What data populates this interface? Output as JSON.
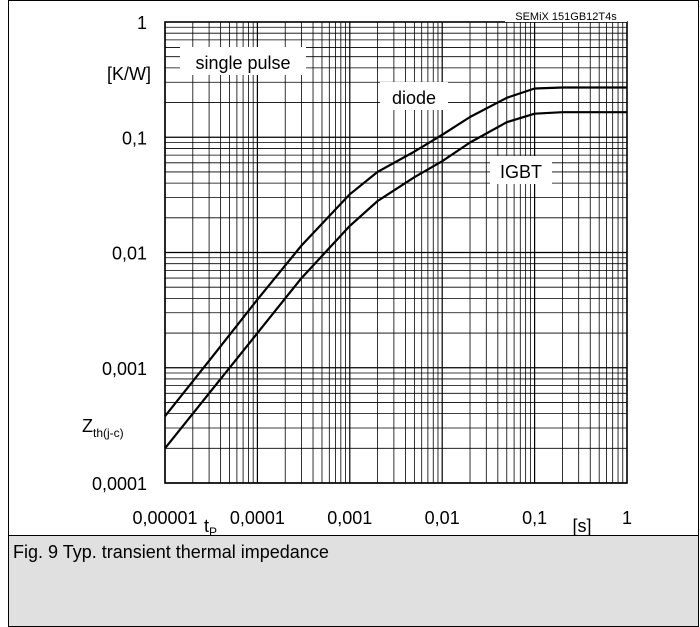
{
  "chart_data": {
    "type": "line",
    "device_label": "SEMiX 151GB12T4s",
    "y_unit": "[K/W]",
    "y_symbol_main": "Z",
    "y_symbol_sub": "th(j-c)",
    "x_symbol_main": "t",
    "x_symbol_sub": "P",
    "x_unit": "[s]",
    "x_scale": "log",
    "y_scale": "log",
    "xlim": [
      1e-05,
      1
    ],
    "ylim": [
      0.0001,
      1
    ],
    "grid": true,
    "x_tick_labels": [
      "0,00001",
      "0,0001",
      "0,001",
      "0,01",
      "0,1",
      "1"
    ],
    "y_tick_labels": [
      "0,0001",
      "0,001",
      "0,01",
      "0,1",
      "1"
    ],
    "annotations": [
      "single pulse"
    ],
    "series": [
      {
        "name": "diode",
        "x": [
          1e-05,
          3e-05,
          0.0001,
          0.0003,
          0.001,
          0.002,
          0.005,
          0.01,
          0.02,
          0.05,
          0.1,
          0.2,
          1
        ],
        "y": [
          0.00038,
          0.00115,
          0.0039,
          0.0115,
          0.032,
          0.05,
          0.075,
          0.105,
          0.15,
          0.22,
          0.265,
          0.27,
          0.27
        ]
      },
      {
        "name": "IGBT",
        "x": [
          1e-05,
          3e-05,
          0.0001,
          0.0003,
          0.001,
          0.002,
          0.005,
          0.01,
          0.02,
          0.05,
          0.1,
          0.2,
          1
        ],
        "y": [
          0.0002,
          0.0006,
          0.002,
          0.006,
          0.017,
          0.028,
          0.045,
          0.062,
          0.09,
          0.135,
          0.16,
          0.165,
          0.165
        ]
      }
    ]
  },
  "caption": "Fig. 9 Typ. transient thermal impedance"
}
